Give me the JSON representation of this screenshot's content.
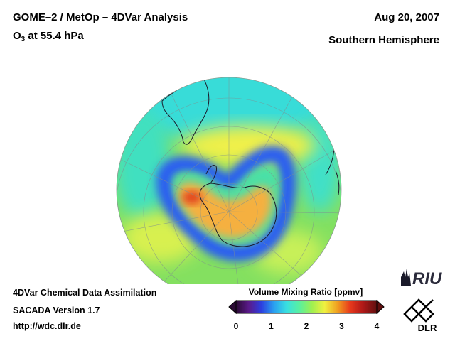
{
  "header": {
    "title": "GOME–2 / MetOp – 4DVar Analysis",
    "species_prefix": "O",
    "species_sub": "3",
    "species_suffix": " at 55.4 hPa",
    "date": "Aug 20, 2007",
    "hemisphere": "Southern Hemisphere"
  },
  "footer": {
    "line1": "4DVar Chemical Data Assimilation",
    "line2": "SACADA Version 1.7",
    "line3": "http://wdc.dlr.de"
  },
  "colorbar": {
    "title": "Volume Mixing Ratio [ppmv]",
    "ticks": [
      "0",
      "1",
      "2",
      "3",
      "4"
    ],
    "min": 0,
    "max": 4,
    "colors": [
      "#2a0a33",
      "#5a1a8a",
      "#2c3fe0",
      "#2aa0f0",
      "#39e0e0",
      "#59f0a0",
      "#a0f050",
      "#f0f040",
      "#f0a020",
      "#e83a1c",
      "#b01818",
      "#601010"
    ]
  },
  "logos": {
    "riu": "RIU",
    "dlr": "DLR"
  },
  "map": {
    "projection": "orthographic, south polar view",
    "field": "ozone volume mixing ratio"
  }
}
